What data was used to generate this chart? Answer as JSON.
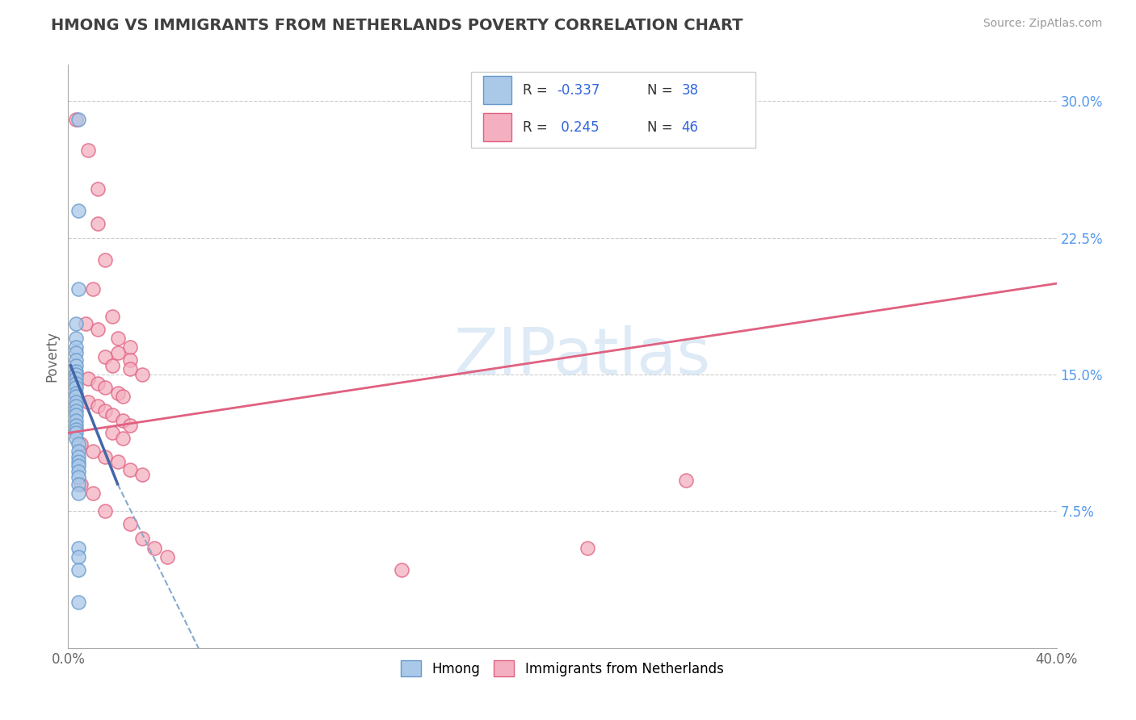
{
  "title": "HMONG VS IMMIGRANTS FROM NETHERLANDS POVERTY CORRELATION CHART",
  "source": "Source: ZipAtlas.com",
  "ylabel": "Poverty",
  "r_hmong": -0.337,
  "n_hmong": 38,
  "r_netherlands": 0.245,
  "n_netherlands": 46,
  "xlim": [
    0.0,
    0.4
  ],
  "ylim": [
    0.0,
    0.32
  ],
  "ytick_right": [
    0.075,
    0.15,
    0.225,
    0.3
  ],
  "ytick_right_labels": [
    "7.5%",
    "15.0%",
    "22.5%",
    "30.0%"
  ],
  "grid_color": "#cccccc",
  "watermark": "ZIPatlas",
  "title_color": "#404040",
  "title_fontsize": 14,
  "hmong_color": "#aac8e8",
  "hmong_edge_color": "#6699cc",
  "netherlands_color": "#f4b0c0",
  "netherlands_edge_color": "#e06080",
  "trend_hmong_solid_color": "#4466aa",
  "trend_hmong_dash_color": "#88aacc",
  "trend_neth_color": "#e06080",
  "hmong_scatter": [
    [
      0.004,
      0.29
    ],
    [
      0.004,
      0.24
    ],
    [
      0.004,
      0.197
    ],
    [
      0.003,
      0.178
    ],
    [
      0.003,
      0.17
    ],
    [
      0.003,
      0.165
    ],
    [
      0.003,
      0.162
    ],
    [
      0.003,
      0.158
    ],
    [
      0.003,
      0.155
    ],
    [
      0.003,
      0.152
    ],
    [
      0.003,
      0.15
    ],
    [
      0.003,
      0.148
    ],
    [
      0.003,
      0.145
    ],
    [
      0.003,
      0.143
    ],
    [
      0.003,
      0.14
    ],
    [
      0.003,
      0.138
    ],
    [
      0.003,
      0.135
    ],
    [
      0.003,
      0.133
    ],
    [
      0.003,
      0.13
    ],
    [
      0.003,
      0.128
    ],
    [
      0.003,
      0.125
    ],
    [
      0.003,
      0.122
    ],
    [
      0.003,
      0.12
    ],
    [
      0.003,
      0.118
    ],
    [
      0.003,
      0.115
    ],
    [
      0.004,
      0.112
    ],
    [
      0.004,
      0.108
    ],
    [
      0.004,
      0.105
    ],
    [
      0.004,
      0.102
    ],
    [
      0.004,
      0.1
    ],
    [
      0.004,
      0.097
    ],
    [
      0.004,
      0.094
    ],
    [
      0.004,
      0.09
    ],
    [
      0.004,
      0.085
    ],
    [
      0.004,
      0.055
    ],
    [
      0.004,
      0.05
    ],
    [
      0.004,
      0.043
    ],
    [
      0.004,
      0.025
    ]
  ],
  "netherlands_scatter": [
    [
      0.003,
      0.29
    ],
    [
      0.008,
      0.273
    ],
    [
      0.012,
      0.252
    ],
    [
      0.012,
      0.233
    ],
    [
      0.015,
      0.213
    ],
    [
      0.01,
      0.197
    ],
    [
      0.018,
      0.182
    ],
    [
      0.007,
      0.178
    ],
    [
      0.012,
      0.175
    ],
    [
      0.02,
      0.17
    ],
    [
      0.025,
      0.165
    ],
    [
      0.02,
      0.162
    ],
    [
      0.015,
      0.16
    ],
    [
      0.025,
      0.158
    ],
    [
      0.018,
      0.155
    ],
    [
      0.025,
      0.153
    ],
    [
      0.03,
      0.15
    ],
    [
      0.008,
      0.148
    ],
    [
      0.012,
      0.145
    ],
    [
      0.015,
      0.143
    ],
    [
      0.02,
      0.14
    ],
    [
      0.022,
      0.138
    ],
    [
      0.008,
      0.135
    ],
    [
      0.012,
      0.133
    ],
    [
      0.015,
      0.13
    ],
    [
      0.018,
      0.128
    ],
    [
      0.022,
      0.125
    ],
    [
      0.025,
      0.122
    ],
    [
      0.018,
      0.118
    ],
    [
      0.022,
      0.115
    ],
    [
      0.005,
      0.112
    ],
    [
      0.01,
      0.108
    ],
    [
      0.015,
      0.105
    ],
    [
      0.02,
      0.102
    ],
    [
      0.025,
      0.098
    ],
    [
      0.03,
      0.095
    ],
    [
      0.005,
      0.09
    ],
    [
      0.01,
      0.085
    ],
    [
      0.015,
      0.075
    ],
    [
      0.025,
      0.068
    ],
    [
      0.03,
      0.06
    ],
    [
      0.035,
      0.055
    ],
    [
      0.04,
      0.05
    ],
    [
      0.25,
      0.092
    ],
    [
      0.21,
      0.055
    ],
    [
      0.135,
      0.043
    ]
  ],
  "hmong_trendline": [
    [
      0.001,
      0.155
    ],
    [
      0.02,
      0.09
    ]
  ],
  "hmong_trendline_dashed": [
    [
      0.02,
      0.09
    ],
    [
      0.06,
      -0.02
    ]
  ],
  "neth_trendline": [
    [
      0.0,
      0.118
    ],
    [
      0.4,
      0.2
    ]
  ]
}
